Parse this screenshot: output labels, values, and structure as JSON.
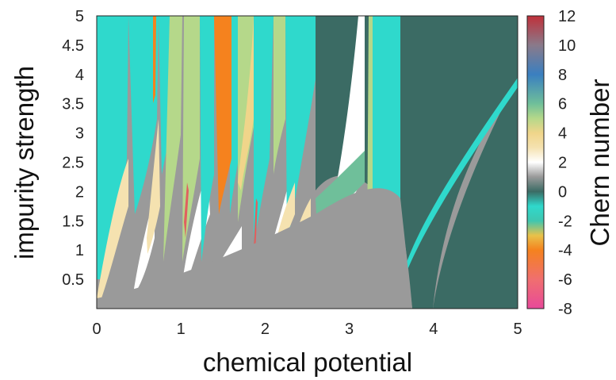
{
  "chart_data": {
    "type": "heatmap",
    "title": "",
    "xlabel": "chemical potential",
    "ylabel": "impurity strength",
    "colorbar_label": "Chern number",
    "xlim": [
      0,
      5
    ],
    "ylim": [
      0,
      5
    ],
    "xticks": [
      "0",
      "1",
      "2",
      "3",
      "4",
      "5"
    ],
    "yticks": [
      "0.5",
      "1",
      "1.5",
      "2",
      "2.5",
      "3",
      "3.5",
      "4",
      "4.5",
      "5"
    ],
    "colorbar_range": [
      -8,
      12
    ],
    "colorbar_ticks": [
      "12",
      "10",
      "8",
      "6",
      "4",
      "2",
      "0",
      "-2",
      "-4",
      "-6",
      "-8"
    ],
    "colormap": [
      {
        "value": -8,
        "color": "#e84a9a"
      },
      {
        "value": -6,
        "color": "#f06f6f"
      },
      {
        "value": -4,
        "color": "#f5821e"
      },
      {
        "value": -3,
        "color": "#e8c24a"
      },
      {
        "value": -2,
        "color": "#3fc6b0"
      },
      {
        "value": -1,
        "color": "#2fd9cc"
      },
      {
        "value": 0,
        "color": "#3b6b64"
      },
      {
        "value": 1,
        "color": "#9a9a9a"
      },
      {
        "value": 2,
        "color": "#ffffff"
      },
      {
        "value": 3,
        "color": "#f5e2b0"
      },
      {
        "value": 4,
        "color": "#f0d58a"
      },
      {
        "value": 5,
        "color": "#b5d88a"
      },
      {
        "value": 6,
        "color": "#6fbf9a"
      },
      {
        "value": 8,
        "color": "#3a7fc0"
      },
      {
        "value": 10,
        "color": "#8a7a8a"
      },
      {
        "value": 12,
        "color": "#c0303a"
      }
    ],
    "grid": false,
    "legend": "colorbar-right"
  }
}
